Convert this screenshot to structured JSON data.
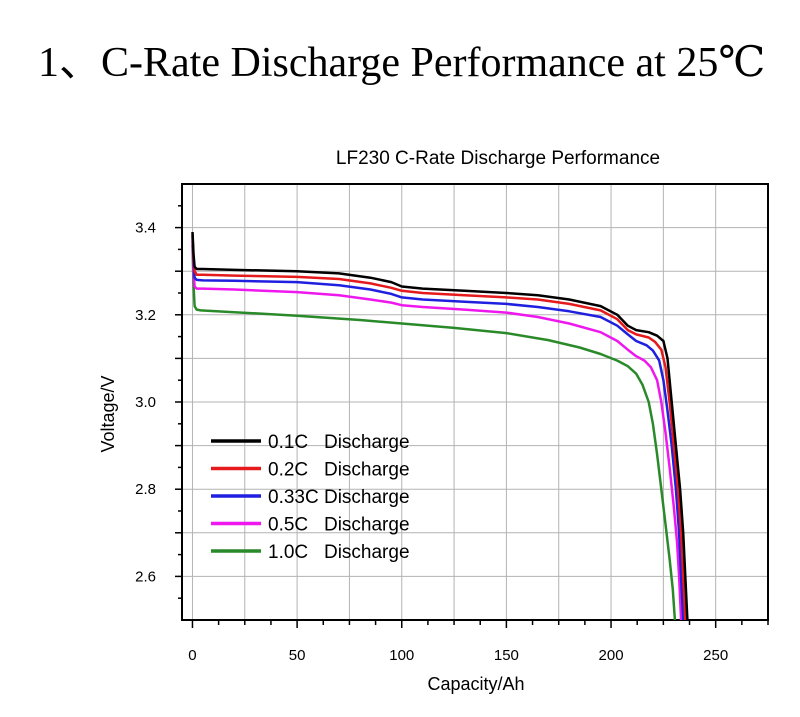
{
  "page": {
    "heading_number": "1、",
    "heading_text": "C-Rate Discharge Performance at 25℃"
  },
  "chart_data": {
    "type": "line",
    "title": "LF230 C-Rate Discharge Performance",
    "xlabel": "Capacity/Ah",
    "ylabel": "Voltage/V",
    "xlim": [
      -5,
      275
    ],
    "ylim": [
      2.5,
      3.5
    ],
    "xticks": [
      0,
      50,
      100,
      150,
      200,
      250
    ],
    "yticks": [
      2.6,
      2.8,
      3.0,
      3.2,
      3.4
    ],
    "ytick_labels": [
      "2.6",
      "2.8",
      "3.0",
      "3.2",
      "3.4"
    ],
    "grid": true,
    "legend_position": "left",
    "series": [
      {
        "name": "0.1C   Discharge",
        "color": "#000000",
        "points": [
          [
            0,
            3.39
          ],
          [
            0.5,
            3.34
          ],
          [
            1,
            3.31
          ],
          [
            2,
            3.305
          ],
          [
            5,
            3.305
          ],
          [
            20,
            3.303
          ],
          [
            50,
            3.3
          ],
          [
            70,
            3.295
          ],
          [
            85,
            3.285
          ],
          [
            95,
            3.275
          ],
          [
            100,
            3.265
          ],
          [
            110,
            3.26
          ],
          [
            130,
            3.255
          ],
          [
            150,
            3.25
          ],
          [
            165,
            3.245
          ],
          [
            180,
            3.235
          ],
          [
            195,
            3.22
          ],
          [
            203,
            3.2
          ],
          [
            208,
            3.175
          ],
          [
            212,
            3.165
          ],
          [
            218,
            3.16
          ],
          [
            222,
            3.152
          ],
          [
            225,
            3.14
          ],
          [
            227,
            3.1
          ],
          [
            229,
            3.0
          ],
          [
            231,
            2.9
          ],
          [
            233,
            2.8
          ],
          [
            234.5,
            2.7
          ],
          [
            235.5,
            2.6
          ],
          [
            236.5,
            2.5
          ]
        ]
      },
      {
        "name": "0.2C   Discharge",
        "color": "#e41a1c",
        "points": [
          [
            0,
            3.385
          ],
          [
            0.5,
            3.33
          ],
          [
            1,
            3.3
          ],
          [
            2,
            3.292
          ],
          [
            5,
            3.292
          ],
          [
            20,
            3.29
          ],
          [
            50,
            3.287
          ],
          [
            70,
            3.282
          ],
          [
            85,
            3.272
          ],
          [
            95,
            3.262
          ],
          [
            100,
            3.255
          ],
          [
            110,
            3.25
          ],
          [
            130,
            3.245
          ],
          [
            150,
            3.24
          ],
          [
            165,
            3.235
          ],
          [
            180,
            3.225
          ],
          [
            195,
            3.21
          ],
          [
            203,
            3.19
          ],
          [
            208,
            3.165
          ],
          [
            212,
            3.155
          ],
          [
            218,
            3.148
          ],
          [
            221,
            3.138
          ],
          [
            224,
            3.12
          ],
          [
            226,
            3.08
          ],
          [
            228,
            3.0
          ],
          [
            230,
            2.9
          ],
          [
            232,
            2.8
          ],
          [
            233.5,
            2.7
          ],
          [
            234.5,
            2.6
          ],
          [
            235.5,
            2.5
          ]
        ]
      },
      {
        "name": "0.33C Discharge",
        "color": "#1f1fe0",
        "points": [
          [
            0,
            3.38
          ],
          [
            0.5,
            3.32
          ],
          [
            1,
            3.285
          ],
          [
            2,
            3.28
          ],
          [
            5,
            3.279
          ],
          [
            20,
            3.278
          ],
          [
            50,
            3.275
          ],
          [
            70,
            3.268
          ],
          [
            85,
            3.258
          ],
          [
            95,
            3.248
          ],
          [
            100,
            3.24
          ],
          [
            110,
            3.235
          ],
          [
            130,
            3.23
          ],
          [
            150,
            3.225
          ],
          [
            165,
            3.218
          ],
          [
            180,
            3.208
          ],
          [
            195,
            3.195
          ],
          [
            203,
            3.175
          ],
          [
            208,
            3.155
          ],
          [
            212,
            3.14
          ],
          [
            217,
            3.13
          ],
          [
            220,
            3.118
          ],
          [
            223,
            3.095
          ],
          [
            225,
            3.05
          ],
          [
            227,
            2.98
          ],
          [
            229,
            2.9
          ],
          [
            231,
            2.8
          ],
          [
            232.5,
            2.7
          ],
          [
            233.5,
            2.6
          ],
          [
            234.5,
            2.5
          ]
        ]
      },
      {
        "name": "0.5C   Discharge",
        "color": "#ee18ee",
        "points": [
          [
            0,
            3.37
          ],
          [
            0.5,
            3.3
          ],
          [
            1,
            3.265
          ],
          [
            2,
            3.26
          ],
          [
            5,
            3.26
          ],
          [
            20,
            3.258
          ],
          [
            50,
            3.252
          ],
          [
            70,
            3.245
          ],
          [
            85,
            3.235
          ],
          [
            95,
            3.228
          ],
          [
            100,
            3.222
          ],
          [
            110,
            3.218
          ],
          [
            130,
            3.212
          ],
          [
            150,
            3.205
          ],
          [
            165,
            3.195
          ],
          [
            180,
            3.18
          ],
          [
            195,
            3.16
          ],
          [
            203,
            3.14
          ],
          [
            208,
            3.12
          ],
          [
            212,
            3.105
          ],
          [
            216,
            3.095
          ],
          [
            219,
            3.08
          ],
          [
            222,
            3.05
          ],
          [
            224,
            3.0
          ],
          [
            226,
            2.93
          ],
          [
            228,
            2.85
          ],
          [
            230,
            2.76
          ],
          [
            231.5,
            2.68
          ],
          [
            232.5,
            2.6
          ],
          [
            233.5,
            2.5
          ]
        ]
      },
      {
        "name": "1.0C   Discharge",
        "color": "#2a8a2a",
        "points": [
          [
            0,
            3.36
          ],
          [
            0.5,
            3.27
          ],
          [
            1,
            3.22
          ],
          [
            2,
            3.212
          ],
          [
            4,
            3.21
          ],
          [
            20,
            3.206
          ],
          [
            50,
            3.198
          ],
          [
            80,
            3.188
          ],
          [
            100,
            3.18
          ],
          [
            125,
            3.17
          ],
          [
            150,
            3.158
          ],
          [
            170,
            3.142
          ],
          [
            185,
            3.125
          ],
          [
            195,
            3.11
          ],
          [
            203,
            3.095
          ],
          [
            208,
            3.082
          ],
          [
            212,
            3.065
          ],
          [
            215,
            3.04
          ],
          [
            218,
            3.0
          ],
          [
            220,
            2.95
          ],
          [
            222,
            2.88
          ],
          [
            224,
            2.8
          ],
          [
            226,
            2.72
          ],
          [
            228,
            2.64
          ],
          [
            229.5,
            2.57
          ],
          [
            230.5,
            2.5
          ]
        ]
      }
    ]
  }
}
